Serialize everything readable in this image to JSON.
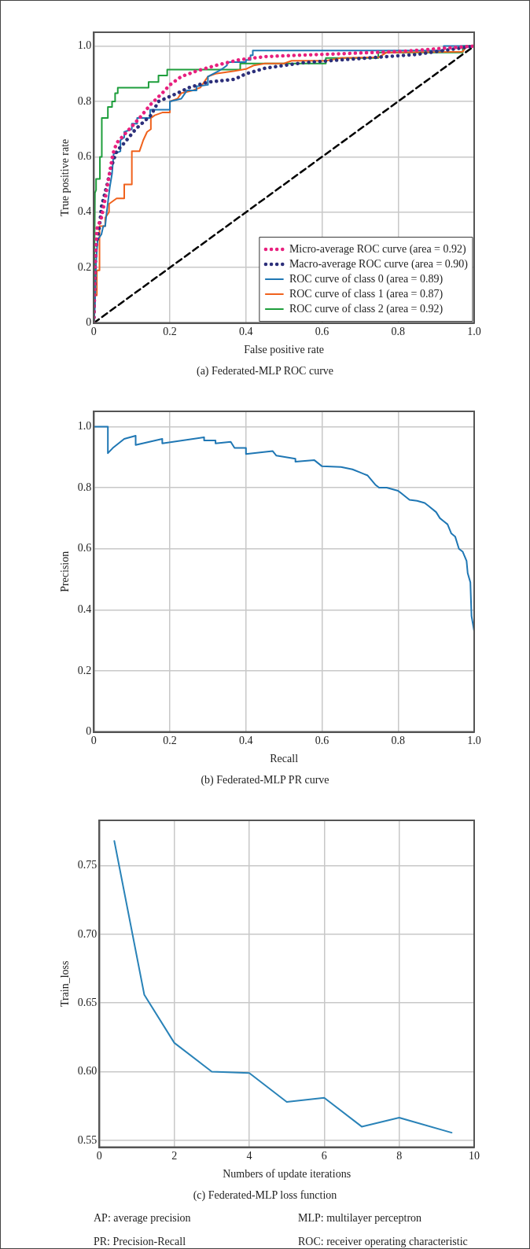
{
  "chart_data": [
    {
      "type": "line",
      "title": "(a) Federated-MLP ROC curve",
      "xlabel": "False positive rate",
      "ylabel": "True positive rate",
      "xlim": [
        0,
        1
      ],
      "ylim": [
        0,
        1.05
      ],
      "xticks": [
        0,
        0.2,
        0.4,
        0.6,
        0.8,
        {
          "value": 1,
          "label": "1.0"
        }
      ],
      "yticks": [
        0,
        0.2,
        0.4,
        0.6,
        0.8,
        {
          "value": 1,
          "label": "1.0"
        }
      ],
      "grid": true,
      "legend": "bottom right",
      "series": [
        {
          "name": "Micro-average ROC curve (area = 0.92)",
          "color": "#e8207e",
          "line_style": "dotted",
          "x": [
            0,
            0.003,
            0.008,
            0.02,
            0.03,
            0.04,
            0.05,
            0.06,
            0.08,
            0.1,
            0.12,
            0.15,
            0.18,
            0.2,
            0.23,
            0.27,
            0.32,
            0.38,
            0.45,
            0.6,
            0.8,
            1
          ],
          "values": [
            0,
            0.2,
            0.34,
            0.38,
            0.45,
            0.53,
            0.61,
            0.65,
            0.68,
            0.71,
            0.74,
            0.79,
            0.83,
            0.86,
            0.89,
            0.91,
            0.93,
            0.95,
            0.962,
            0.97,
            0.98,
            1
          ]
        },
        {
          "name": "Macro-average ROC curve (area = 0.90)",
          "color": "#2c2f7a",
          "line_style": "dotted",
          "x": [
            0,
            0.005,
            0.015,
            0.02,
            0.035,
            0.045,
            0.06,
            0.08,
            0.11,
            0.15,
            0.17,
            0.22,
            0.25,
            0.3,
            0.37,
            0.4,
            0.45,
            0.5,
            0.55,
            0.65,
            0.75,
            0.85,
            0.95,
            1
          ],
          "values": [
            0,
            0.27,
            0.35,
            0.42,
            0.5,
            0.56,
            0.62,
            0.65,
            0.7,
            0.75,
            0.8,
            0.83,
            0.85,
            0.87,
            0.88,
            0.9,
            0.92,
            0.93,
            0.94,
            0.95,
            0.96,
            0.97,
            0.99,
            1
          ]
        },
        {
          "name": "ROC curve of class 0 (area = 0.89)",
          "color": "#1f77b4",
          "line_style": "solid",
          "x": [
            0,
            0.003,
            0.006,
            0.01,
            0.02,
            0.025,
            0.03,
            0.033,
            0.042,
            0.048,
            0.052,
            0.07,
            0.07,
            0.08,
            0.08,
            0.1,
            0.1,
            0.114,
            0.114,
            0.148,
            0.148,
            0.2,
            0.2,
            0.23,
            0.245,
            0.27,
            0.27,
            0.3,
            0.3,
            0.328,
            0.34,
            0.35,
            0.35,
            0.4,
            0.4,
            0.412,
            0.412,
            0.418,
            0.418,
            0.92,
            0.92,
            1
          ],
          "values": [
            0,
            0.06,
            0.22,
            0.3,
            0.32,
            0.35,
            0.35,
            0.39,
            0.49,
            0.54,
            0.61,
            0.62,
            0.66,
            0.67,
            0.69,
            0.7,
            0.72,
            0.72,
            0.74,
            0.74,
            0.77,
            0.77,
            0.8,
            0.81,
            0.84,
            0.84,
            0.855,
            0.86,
            0.89,
            0.91,
            0.92,
            0.93,
            0.942,
            0.942,
            0.95,
            0.95,
            0.967,
            0.967,
            0.984,
            0.984,
            1,
            1
          ]
        },
        {
          "name": "ROC curve of class 1 (area = 0.87)",
          "color": "#f0621d",
          "line_style": "solid",
          "x": [
            0,
            0.003,
            0.008,
            0.008,
            0.015,
            0.015,
            0.03,
            0.03,
            0.04,
            0.04,
            0.05,
            0.06,
            0.08,
            0.08,
            0.1,
            0.1,
            0.12,
            0.125,
            0.13,
            0.14,
            0.15,
            0.15,
            0.16,
            0.18,
            0.2,
            0.2,
            0.22,
            0.23,
            0.26,
            0.28,
            0.29,
            0.3,
            0.32,
            0.37,
            0.4,
            0.42,
            0.45,
            0.5,
            0.52,
            0.61,
            0.65,
            0.75,
            0.77,
            0.97,
            0.98,
            1
          ],
          "values": [
            0,
            0.1,
            0.1,
            0.19,
            0.19,
            0.35,
            0.35,
            0.38,
            0.4,
            0.43,
            0.44,
            0.45,
            0.45,
            0.5,
            0.5,
            0.62,
            0.62,
            0.64,
            0.66,
            0.69,
            0.7,
            0.74,
            0.75,
            0.76,
            0.76,
            0.8,
            0.81,
            0.83,
            0.84,
            0.85,
            0.87,
            0.89,
            0.9,
            0.91,
            0.917,
            0.93,
            0.937,
            0.937,
            0.947,
            0.947,
            0.957,
            0.96,
            0.977,
            0.98,
            1,
            1
          ]
        },
        {
          "name": "ROC curve of class 2 (area = 0.92)",
          "color": "#1e9e3c",
          "line_style": "solid",
          "x": [
            0,
            0.001,
            0.003,
            0.006,
            0.006,
            0.016,
            0.016,
            0.021,
            0.021,
            0.037,
            0.037,
            0.048,
            0.048,
            0.056,
            0.056,
            0.063,
            0.063,
            0.144,
            0.144,
            0.17,
            0.17,
            0.193,
            0.193,
            0.385,
            0.385,
            0.61,
            0.61,
            0.748,
            0.748,
            0.97,
            0.97,
            1
          ],
          "values": [
            0,
            0.12,
            0.47,
            0.48,
            0.52,
            0.52,
            0.6,
            0.6,
            0.74,
            0.74,
            0.78,
            0.78,
            0.8,
            0.8,
            0.83,
            0.83,
            0.85,
            0.85,
            0.87,
            0.87,
            0.894,
            0.894,
            0.915,
            0.915,
            0.937,
            0.937,
            0.957,
            0.957,
            0.977,
            0.977,
            1,
            1
          ]
        },
        {
          "color": "#000000",
          "line_style": "dashed",
          "x": [
            0,
            1
          ],
          "values": [
            0,
            1
          ]
        }
      ]
    },
    {
      "type": "line",
      "title": "(b) Federated-MLP PR curve",
      "xlabel": "Recall",
      "ylabel": "Precision",
      "xlim": [
        0,
        1
      ],
      "ylim": [
        0,
        1.05
      ],
      "xticks": [
        0,
        0.2,
        0.4,
        0.6,
        0.8,
        {
          "value": 1,
          "label": "1.0"
        }
      ],
      "yticks": [
        0,
        0.2,
        0.4,
        0.6,
        0.8,
        {
          "value": 1,
          "label": "1.0"
        }
      ],
      "grid": true,
      "color": "#1f77b4",
      "x": [
        0,
        0.037,
        0.037,
        0.05,
        0.08,
        0.11,
        0.11,
        0.18,
        0.18,
        0.29,
        0.29,
        0.32,
        0.32,
        0.36,
        0.37,
        0.4,
        0.4,
        0.47,
        0.48,
        0.53,
        0.53,
        0.58,
        0.6,
        0.65,
        0.68,
        0.7,
        0.71,
        0.72,
        0.74,
        0.75,
        0.77,
        0.8,
        0.81,
        0.83,
        0.85,
        0.87,
        0.88,
        0.9,
        0.91,
        0.92,
        0.93,
        0.94,
        0.95,
        0.96,
        0.97,
        0.98,
        0.983,
        0.99,
        0.993,
        1
      ],
      "values": [
        1,
        1,
        0.913,
        0.93,
        0.96,
        0.97,
        0.94,
        0.96,
        0.945,
        0.965,
        0.955,
        0.955,
        0.945,
        0.95,
        0.93,
        0.93,
        0.91,
        0.92,
        0.905,
        0.895,
        0.885,
        0.89,
        0.87,
        0.868,
        0.86,
        0.85,
        0.845,
        0.84,
        0.81,
        0.8,
        0.8,
        0.79,
        0.78,
        0.76,
        0.757,
        0.75,
        0.74,
        0.72,
        0.7,
        0.69,
        0.68,
        0.65,
        0.64,
        0.6,
        0.59,
        0.56,
        0.52,
        0.49,
        0.38,
        0.33
      ]
    },
    {
      "type": "line",
      "title": "(c) Federated-MLP loss function",
      "xlabel": "Numbers of update iterations",
      "ylabel": "Train_loss",
      "xlim": [
        0,
        10
      ],
      "ylim": [
        0.545,
        0.783
      ],
      "xticks": [
        0,
        2,
        4,
        6,
        8,
        10
      ],
      "yticks": [
        0.55,
        {
          "value": 0.6,
          "label": "0.60"
        },
        0.65,
        {
          "value": 0.7,
          "label": "0.70"
        },
        0.75
      ],
      "grid": true,
      "color": "#2a83b8",
      "x": [
        0.4,
        1.2,
        2,
        3,
        4,
        5,
        6,
        7,
        8,
        9.4
      ],
      "values": [
        0.768,
        0.656,
        0.621,
        0.6,
        0.599,
        0.578,
        0.581,
        0.56,
        0.5665,
        0.5556
      ],
      "annotations": [
        "AP: average precision",
        "MLP: multilayer perceptron",
        "PR: Precision-Recall",
        "ROC: receiver operating characteristic"
      ]
    }
  ]
}
